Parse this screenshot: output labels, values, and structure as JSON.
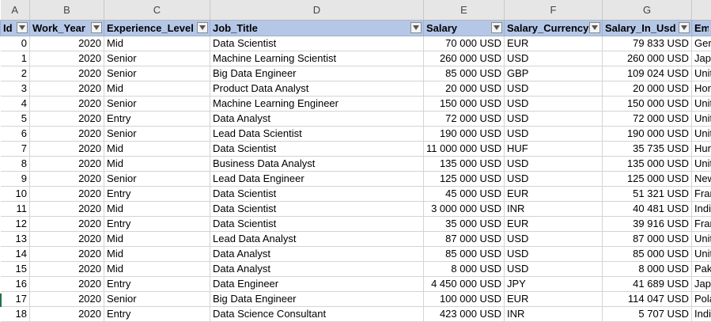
{
  "column_letters": [
    "A",
    "B",
    "C",
    "D",
    "E",
    "F",
    "G",
    ""
  ],
  "headers": [
    "Id",
    "Work_Year",
    "Experience_Level",
    "Job_Title",
    "Salary",
    "Salary_Currency",
    "Salary_In_Usd",
    "Emp"
  ],
  "rows": [
    [
      "0",
      "2020",
      "Mid",
      "Data Scientist",
      "70 000 USD",
      "EUR",
      "79 833 USD",
      "Gerr"
    ],
    [
      "1",
      "2020",
      "Senior",
      "Machine Learning Scientist",
      "260 000 USD",
      "USD",
      "260 000 USD",
      "Japa"
    ],
    [
      "2",
      "2020",
      "Senior",
      "Big Data Engineer",
      "85 000 USD",
      "GBP",
      "109 024 USD",
      "Unit"
    ],
    [
      "3",
      "2020",
      "Mid",
      "Product Data Analyst",
      "20 000 USD",
      "USD",
      "20 000 USD",
      "Hon"
    ],
    [
      "4",
      "2020",
      "Senior",
      "Machine Learning Engineer",
      "150 000 USD",
      "USD",
      "150 000 USD",
      "Unit"
    ],
    [
      "5",
      "2020",
      "Entry",
      "Data Analyst",
      "72 000 USD",
      "USD",
      "72 000 USD",
      "Unit"
    ],
    [
      "6",
      "2020",
      "Senior",
      "Lead Data Scientist",
      "190 000 USD",
      "USD",
      "190 000 USD",
      "Unit"
    ],
    [
      "7",
      "2020",
      "Mid",
      "Data Scientist",
      "11 000 000 USD",
      "HUF",
      "35 735 USD",
      "Hun"
    ],
    [
      "8",
      "2020",
      "Mid",
      "Business Data Analyst",
      "135 000 USD",
      "USD",
      "135 000 USD",
      "Unit"
    ],
    [
      "9",
      "2020",
      "Senior",
      "Lead Data Engineer",
      "125 000 USD",
      "USD",
      "125 000 USD",
      "New"
    ],
    [
      "10",
      "2020",
      "Entry",
      "Data Scientist",
      "45 000 USD",
      "EUR",
      "51 321 USD",
      "Fran"
    ],
    [
      "11",
      "2020",
      "Mid",
      "Data Scientist",
      "3 000 000 USD",
      "INR",
      "40 481 USD",
      "India"
    ],
    [
      "12",
      "2020",
      "Entry",
      "Data Scientist",
      "35 000 USD",
      "EUR",
      "39 916 USD",
      "Fran"
    ],
    [
      "13",
      "2020",
      "Mid",
      "Lead Data Analyst",
      "87 000 USD",
      "USD",
      "87 000 USD",
      "Unit"
    ],
    [
      "14",
      "2020",
      "Mid",
      "Data Analyst",
      "85 000 USD",
      "USD",
      "85 000 USD",
      "Unit"
    ],
    [
      "15",
      "2020",
      "Mid",
      "Data Analyst",
      "8 000 USD",
      "USD",
      "8 000 USD",
      "Paki"
    ],
    [
      "16",
      "2020",
      "Entry",
      "Data Engineer",
      "4 450 000 USD",
      "JPY",
      "41 689 USD",
      "Japa"
    ],
    [
      "17",
      "2020",
      "Senior",
      "Big Data Engineer",
      "100 000 USD",
      "EUR",
      "114 047 USD",
      "Pola"
    ],
    [
      "18",
      "2020",
      "Entry",
      "Data Science Consultant",
      "423 000 USD",
      "INR",
      "5 707 USD",
      "India"
    ]
  ]
}
